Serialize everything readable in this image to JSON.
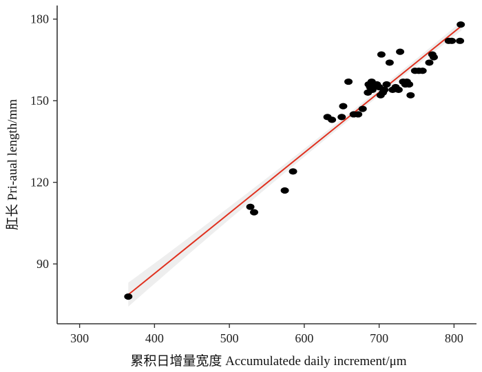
{
  "chart_data": {
    "type": "scatter",
    "xlabel": "累积日增量宽度 Accumulatede daily increment/μm",
    "ylabel": "肛长 Pri-aual length/mm",
    "xlim": [
      270,
      830
    ],
    "ylim": [
      68,
      185
    ],
    "xticks": [
      300,
      400,
      500,
      600,
      700,
      800
    ],
    "yticks": [
      90,
      120,
      150,
      180
    ],
    "grid": false,
    "legend": "none",
    "series": [
      {
        "kind": "points",
        "color": "#000000",
        "points": [
          [
            365,
            78
          ],
          [
            528,
            111
          ],
          [
            533,
            109
          ],
          [
            574,
            117
          ],
          [
            585,
            124
          ],
          [
            631,
            144
          ],
          [
            637,
            143
          ],
          [
            650,
            144
          ],
          [
            652,
            148
          ],
          [
            659,
            157
          ],
          [
            666,
            145
          ],
          [
            672,
            145
          ],
          [
            678,
            147
          ],
          [
            685,
            153
          ],
          [
            686,
            156
          ],
          [
            688,
            155
          ],
          [
            690,
            157
          ],
          [
            691,
            154
          ],
          [
            693,
            156
          ],
          [
            697,
            156
          ],
          [
            700,
            155
          ],
          [
            702,
            152
          ],
          [
            703,
            167
          ],
          [
            705,
            153
          ],
          [
            707,
            154
          ],
          [
            710,
            156
          ],
          [
            714,
            164
          ],
          [
            718,
            154
          ],
          [
            722,
            155
          ],
          [
            726,
            154
          ],
          [
            728,
            168
          ],
          [
            732,
            157
          ],
          [
            735,
            156
          ],
          [
            737,
            157
          ],
          [
            740,
            156
          ],
          [
            742,
            152
          ],
          [
            748,
            161
          ],
          [
            753,
            161
          ],
          [
            758,
            161
          ],
          [
            767,
            164
          ],
          [
            771,
            167
          ],
          [
            773,
            166
          ],
          [
            793,
            172
          ],
          [
            797,
            172
          ],
          [
            808,
            172
          ],
          [
            809,
            178
          ]
        ]
      },
      {
        "kind": "fit-line",
        "color": "#e0301e",
        "band_color": "#d9d9d9",
        "x": [
          365,
          810
        ],
        "y": [
          78.7,
          177.5
        ],
        "band_halfwidth_ends": 4.4,
        "band_halfwidth_mid": 1.2,
        "band_mid_x": 690
      }
    ]
  }
}
